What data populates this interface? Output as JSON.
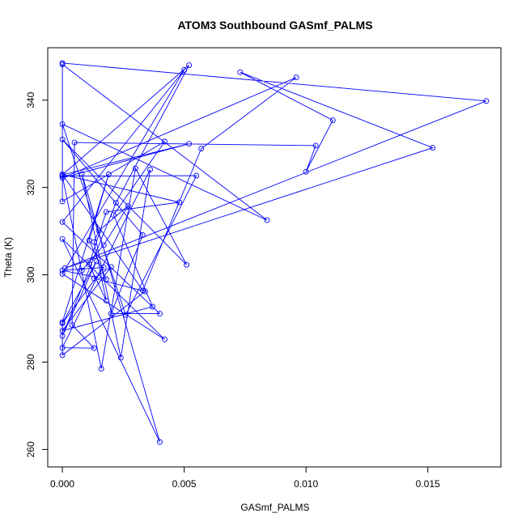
{
  "chart_data": {
    "type": "line",
    "title": "ATOM3 Southbound GASmf_PALMS",
    "xlabel": "GASmf_PALMS",
    "ylabel": "Theta (K)",
    "xlim": [
      -0.0006,
      0.018
    ],
    "ylim": [
      256.0,
      352.0
    ],
    "x_ticks": [
      0.0,
      0.005,
      0.01,
      0.015
    ],
    "x_tick_labels": [
      "0.000",
      "0.005",
      "0.010",
      "0.015"
    ],
    "y_ticks": [
      260,
      280,
      300,
      320,
      340
    ],
    "y_tick_labels": [
      "260",
      "280",
      "300",
      "320",
      "340"
    ],
    "grid": false,
    "legend": "none",
    "series_color": "#0000ff",
    "series": [
      {
        "points": [
          [
            0.0,
            348.5
          ],
          [
            0.0174,
            339.8
          ],
          [
            0.0001,
            301.5
          ],
          [
            0.0152,
            329.1
          ],
          [
            0.0073,
            346.4
          ],
          [
            0.0111,
            335.4
          ],
          [
            0.01,
            323.6
          ],
          [
            0.0104,
            329.6
          ],
          [
            0.0005,
            330.3
          ],
          [
            0.0004,
            288.5
          ],
          [
            0.0013,
            283.2
          ],
          [
            0.0,
            283.3
          ],
          [
            0.0036,
            324.1
          ],
          [
            0.0024,
            281.0
          ],
          [
            0.0008,
            323.1
          ],
          [
            0.004,
            261.7
          ],
          [
            0.0,
            308.2
          ],
          [
            0.0042,
            285.2
          ],
          [
            0.0,
            300.2
          ],
          [
            0.005,
            346.9
          ],
          [
            0.0,
            312.1
          ],
          [
            0.004,
            291.1
          ],
          [
            0.002,
            291.1
          ],
          [
            0.0033,
            309.1
          ],
          [
            0.0,
            331.0
          ],
          [
            0.0051,
            302.3
          ],
          [
            0.003,
            324.4
          ],
          [
            0.0016,
            278.5
          ],
          [
            0.0,
            322.6
          ],
          [
            0.0055,
            322.7
          ],
          [
            0.0026,
            290.8
          ],
          [
            0.0,
            334.5
          ],
          [
            0.0084,
            312.5
          ],
          [
            0.0,
            348.2
          ],
          [
            0.0,
            316.8
          ],
          [
            0.0042,
            330.5
          ],
          [
            0.0021,
            313.7
          ],
          [
            0.0037,
            292.7
          ],
          [
            0.0,
            287.2
          ],
          [
            0.002,
            301.8
          ],
          [
            0.0013,
            299.2
          ],
          [
            0.0034,
            296.2
          ],
          [
            0.0,
            281.6
          ],
          [
            0.0,
            289.2
          ],
          [
            0.0019,
            323.0
          ],
          [
            0.0011,
            307.9
          ],
          [
            0.0018,
            299.0
          ],
          [
            0.0,
            301.0
          ],
          [
            0.0017,
            301.7
          ],
          [
            0.0,
            288.9
          ],
          [
            0.0014,
            303.1
          ],
          [
            0.0,
            286.0
          ],
          [
            0.0022,
            316.5
          ],
          [
            0.0052,
            348.0
          ],
          [
            0.0,
            322.9
          ],
          [
            0.0052,
            330.0
          ],
          [
            0.0,
            322.2
          ],
          [
            0.0096,
            345.2
          ],
          [
            0.0057,
            328.9
          ],
          [
            0.0033,
            296.4
          ],
          [
            0.0,
            323.0
          ],
          [
            0.0048,
            316.6
          ],
          [
            0.0018,
            314.4
          ],
          [
            0.0011,
            302.4
          ],
          [
            0.0018,
            294.1
          ],
          [
            0.0013,
            307.5
          ],
          [
            0.0015,
            310.1
          ],
          [
            0.0027,
            315.8
          ],
          [
            0.0017,
            306.8
          ],
          [
            0.0008,
            301.0
          ]
        ]
      }
    ]
  }
}
